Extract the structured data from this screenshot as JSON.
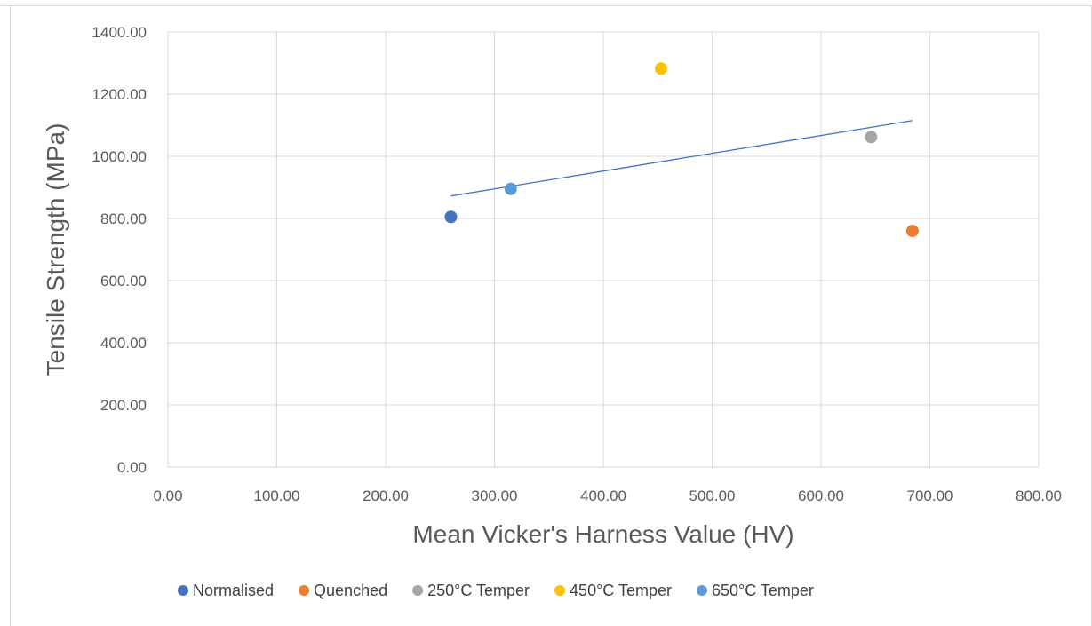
{
  "chart_data": {
    "type": "scatter",
    "title": "",
    "xlabel": "Mean Vicker's Harness Value (HV)",
    "ylabel": "Tensile Strength (MPa)",
    "xlim": [
      0,
      800
    ],
    "ylim": [
      0,
      1400
    ],
    "x_ticks": [
      "0.00",
      "100.00",
      "200.00",
      "300.00",
      "400.00",
      "500.00",
      "600.00",
      "700.00",
      "800.00"
    ],
    "y_ticks": [
      "0.00",
      "200.00",
      "400.00",
      "600.00",
      "800.00",
      "1000.00",
      "1200.00",
      "1400.00"
    ],
    "grid": true,
    "legend_position": "bottom",
    "series": [
      {
        "name": "Normalised",
        "color": "#4472C4",
        "points": [
          {
            "x": 260,
            "y": 805
          }
        ]
      },
      {
        "name": "Quenched",
        "color": "#ED7D31",
        "points": [
          {
            "x": 684,
            "y": 760
          }
        ]
      },
      {
        "name": "250°C Temper",
        "color": "#A5A5A5",
        "points": [
          {
            "x": 646,
            "y": 1062
          }
        ]
      },
      {
        "name": "450°C Temper",
        "color": "#FFC000",
        "points": [
          {
            "x": 453,
            "y": 1282
          }
        ]
      },
      {
        "name": "650°C Temper",
        "color": "#5B9BD5",
        "points": [
          {
            "x": 315,
            "y": 895
          }
        ]
      }
    ],
    "trendline": {
      "color": "#4472C4",
      "x_range": [
        260,
        684
      ],
      "start": {
        "x": 260,
        "y": 872
      },
      "end": {
        "x": 684,
        "y": 1115
      }
    }
  }
}
